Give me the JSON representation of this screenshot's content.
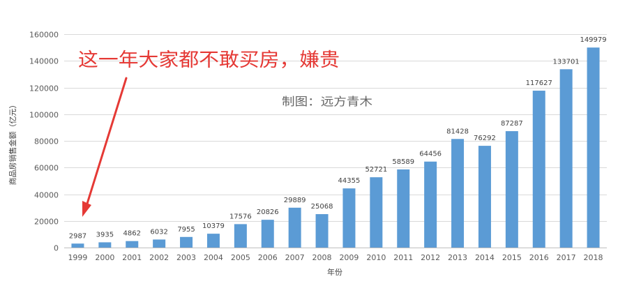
{
  "chart_data": {
    "type": "bar",
    "categories": [
      "1999",
      "2000",
      "2001",
      "2002",
      "2003",
      "2004",
      "2005",
      "2006",
      "2007",
      "2008",
      "2009",
      "2010",
      "2011",
      "2012",
      "2013",
      "2014",
      "2015",
      "2016",
      "2017",
      "2018"
    ],
    "values": [
      2987,
      3935,
      4862,
      6032,
      7955,
      10379,
      17576,
      20826,
      29889,
      25068,
      44355,
      52721,
      58589,
      64456,
      81428,
      76292,
      87287,
      117627,
      133701,
      149979
    ],
    "xlabel": "年份",
    "ylabel": "商品房销售金额（亿元）",
    "ylim": [
      0,
      160000
    ],
    "yticks": [
      0,
      20000,
      40000,
      60000,
      80000,
      100000,
      120000,
      140000,
      160000
    ],
    "grid": true,
    "legend": "none",
    "bar_color": "#5b9bd5",
    "annotations": {
      "headline": "这一年大家都不敢买房，嫌贵",
      "credit": "制图：远方青木",
      "arrow_color": "#e53935"
    }
  }
}
